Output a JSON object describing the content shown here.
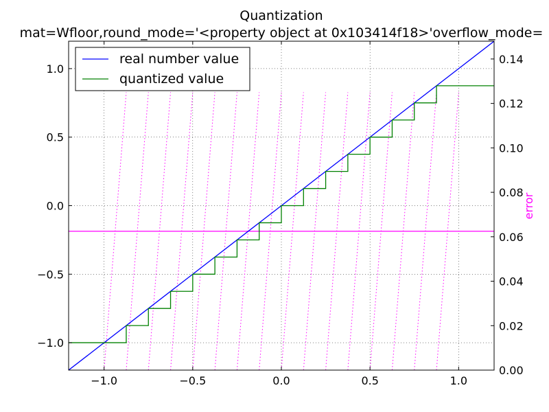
{
  "chart_data": {
    "type": "line",
    "title": "Quantization",
    "subtitle": "mat=Wfloor,round_mode='<property object at 0x103414f18>'overflow_mode=",
    "xlabel": "",
    "ylabel": "",
    "y2label": "error",
    "xlim": [
      -1.2,
      1.2
    ],
    "ylim": [
      -1.2,
      1.2
    ],
    "y2lim": [
      0.0,
      0.148
    ],
    "xticks": [
      -1.0,
      -0.5,
      0.0,
      0.5,
      1.0
    ],
    "xtick_labels": [
      "−1.0",
      "−0.5",
      "0.0",
      "0.5",
      "1.0"
    ],
    "yticks": [
      -1.0,
      -0.5,
      0.0,
      0.5,
      1.0
    ],
    "ytick_labels": [
      "−1.0",
      "−0.5",
      "0.0",
      "0.5",
      "1.0"
    ],
    "y2ticks": [
      0.0,
      0.02,
      0.04,
      0.06,
      0.08,
      0.1,
      0.12,
      0.14
    ],
    "y2tick_labels": [
      "0.00",
      "0.02",
      "0.04",
      "0.06",
      "0.08",
      "0.10",
      "0.12",
      "0.14"
    ],
    "grid": true,
    "legend_position": "top-left",
    "series": [
      {
        "name": "real number value",
        "kind": "line",
        "color": "#0000ff",
        "x": [
          -1.2,
          1.2
        ],
        "y": [
          -1.2,
          1.2
        ]
      },
      {
        "name": "quantized value",
        "kind": "step",
        "color": "#008000",
        "step": 0.125,
        "min": -1.0,
        "max": 0.875,
        "x_range": [
          -1.2,
          1.2
        ]
      }
    ],
    "error_series": {
      "axis": "right",
      "color": "#ff00ff",
      "style": "dotted",
      "step": 0.125,
      "max": 0.125,
      "x_range": [
        -1.0,
        0.875
      ]
    },
    "reference_line": {
      "axis": "right",
      "color": "#ff00ff",
      "value": 0.0625
    }
  }
}
